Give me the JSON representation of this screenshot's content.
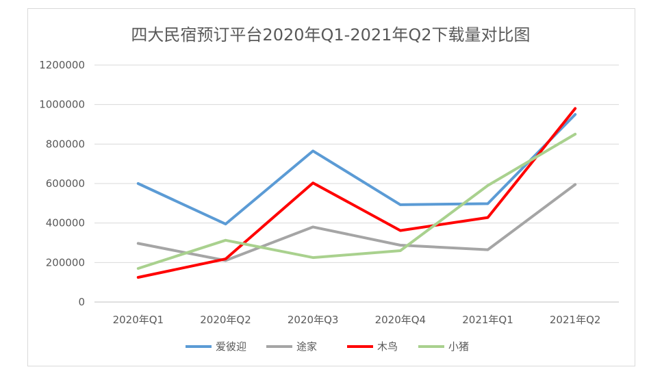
{
  "chart_data": {
    "type": "line",
    "title": "四大民宿预订平台2020年Q1-2021年Q2下载量对比图",
    "xlabel": "",
    "ylabel": "",
    "categories": [
      "2020年Q1",
      "2020年Q2",
      "2020年Q3",
      "2020年Q4",
      "2021年Q1",
      "2021年Q2"
    ],
    "ylim": [
      0,
      1200000
    ],
    "yticks": [
      0,
      200000,
      400000,
      600000,
      800000,
      1000000,
      1200000
    ],
    "ytick_labels": [
      "0",
      "200000",
      "400000",
      "600000",
      "800000",
      "1000000",
      "1200000"
    ],
    "grid": true,
    "legend_position": "bottom",
    "series": [
      {
        "name": "爱彼迎",
        "color": "#5b9bd5",
        "values": [
          600000,
          395000,
          765000,
          493000,
          498000,
          950000
        ]
      },
      {
        "name": "途家",
        "color": "#a5a5a5",
        "values": [
          297000,
          210000,
          380000,
          288000,
          265000,
          595000
        ]
      },
      {
        "name": "木鸟",
        "color": "#ff0000",
        "values": [
          125000,
          218000,
          603000,
          362000,
          428000,
          980000
        ]
      },
      {
        "name": "小猪",
        "color": "#a9d18e",
        "values": [
          170000,
          313000,
          225000,
          260000,
          590000,
          850000
        ]
      }
    ]
  }
}
